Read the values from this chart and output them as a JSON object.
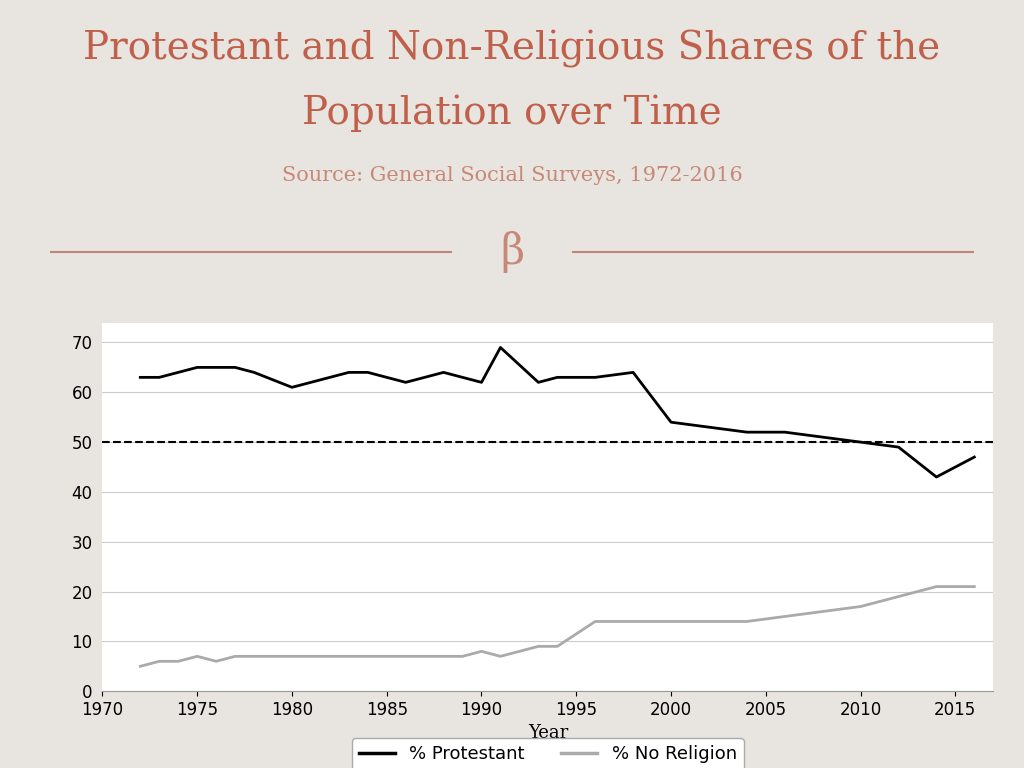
{
  "title_line1": "Protestant and Non-Religious Shares of the",
  "title_line2": "Population over Time",
  "subtitle": "Source: General Social Surveys, 1972-2016",
  "title_color": "#c0604a",
  "subtitle_color": "#c88878",
  "background_color": "#e8e5e0",
  "plot_bg_color": "#ffffff",
  "divider_color": "#c0857a",
  "protestant_years": [
    1972,
    1973,
    1974,
    1975,
    1976,
    1977,
    1978,
    1980,
    1982,
    1983,
    1984,
    1985,
    1986,
    1987,
    1988,
    1989,
    1990,
    1991,
    1993,
    1994,
    1996,
    1998,
    2000,
    2002,
    2004,
    2006,
    2008,
    2010,
    2012,
    2014,
    2016
  ],
  "protestant_values": [
    63,
    63,
    64,
    65,
    65,
    65,
    64,
    61,
    63,
    64,
    64,
    63,
    62,
    63,
    64,
    63,
    62,
    69,
    62,
    63,
    63,
    64,
    54,
    53,
    52,
    52,
    51,
    50,
    49,
    43,
    47
  ],
  "noreligion_years": [
    1972,
    1973,
    1974,
    1975,
    1976,
    1977,
    1978,
    1980,
    1982,
    1983,
    1984,
    1985,
    1986,
    1987,
    1988,
    1989,
    1990,
    1991,
    1993,
    1994,
    1996,
    1998,
    2000,
    2002,
    2004,
    2006,
    2008,
    2010,
    2012,
    2014,
    2016
  ],
  "noreligion_values": [
    5,
    6,
    6,
    7,
    6,
    7,
    7,
    7,
    7,
    7,
    7,
    7,
    7,
    7,
    7,
    7,
    8,
    7,
    9,
    9,
    14,
    14,
    14,
    14,
    14,
    15,
    16,
    17,
    19,
    21,
    21
  ],
  "protestant_color": "#000000",
  "noreligion_color": "#aaaaaa",
  "dashed_line_y": 50,
  "dashed_line_color": "#000000",
  "ylabel_ticks": [
    0,
    10,
    20,
    30,
    40,
    50,
    60,
    70
  ],
  "xticks": [
    1970,
    1975,
    1980,
    1985,
    1990,
    1995,
    2000,
    2005,
    2010,
    2015
  ],
  "xlim": [
    1970,
    2017
  ],
  "ylim": [
    0,
    74
  ],
  "xlabel": "Year",
  "legend_protestant": "% Protestant",
  "legend_noreligion": "% No Religion"
}
